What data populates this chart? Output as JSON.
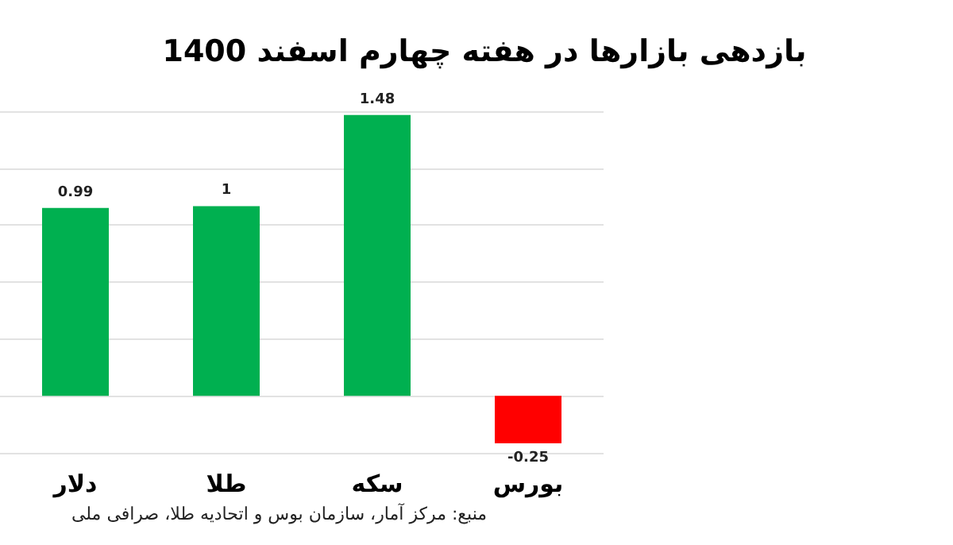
{
  "chart_data": {
    "type": "bar",
    "title": "بازدهی بازارها در هفته چهارم اسفند 1400",
    "categories": [
      "دلار",
      "طلا",
      "سکه",
      "بورس"
    ],
    "values": [
      0.99,
      1,
      1.48,
      -0.25
    ],
    "colors": [
      "#00b050",
      "#00b050",
      "#00b050",
      "#ff0000"
    ],
    "data_labels": true,
    "grid": "y",
    "annotations": [
      "منبع: مرکز آمار، سازمان بوس و اتحادیه طلا، صرافی ملی"
    ]
  }
}
